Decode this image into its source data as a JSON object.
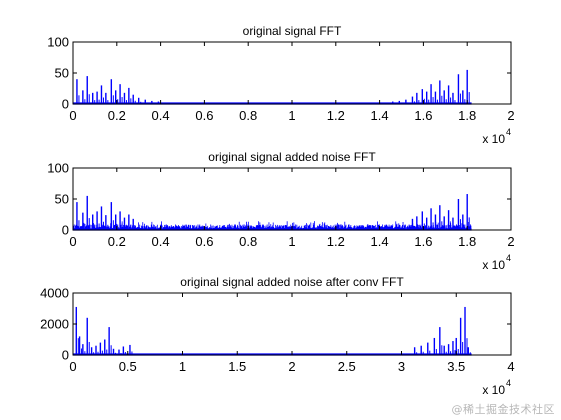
{
  "colors": {
    "signal": "#0000ff",
    "axes": "#000000",
    "background": "#ffffff"
  },
  "watermark": "@稀土掘金技术社区",
  "chart_data": [
    {
      "type": "line",
      "title": "original signal FFT",
      "xlabel": "",
      "ylabel": "",
      "xlim": [
        0,
        20000
      ],
      "ylim": [
        0,
        100
      ],
      "xticks": [
        0,
        2000,
        4000,
        6000,
        8000,
        10000,
        12000,
        14000,
        16000,
        18000,
        20000
      ],
      "xtick_labels": [
        "0",
        "0.2",
        "0.4",
        "0.6",
        "0.8",
        "1",
        "1.2",
        "1.4",
        "1.6",
        "1.8",
        "2"
      ],
      "yticks": [
        0,
        50,
        100
      ],
      "ytick_labels": [
        "0",
        "50",
        "100"
      ],
      "x_exponent_label": "x 10",
      "x_exponent_power": "4",
      "grid": false,
      "x_end": 18200,
      "noise_floor": 1.5,
      "peaks": [
        {
          "x": 180,
          "y": 40
        },
        {
          "x": 450,
          "y": 22
        },
        {
          "x": 650,
          "y": 45
        },
        {
          "x": 900,
          "y": 18
        },
        {
          "x": 1100,
          "y": 20
        },
        {
          "x": 1300,
          "y": 30
        },
        {
          "x": 1500,
          "y": 18
        },
        {
          "x": 1750,
          "y": 40
        },
        {
          "x": 1950,
          "y": 22
        },
        {
          "x": 2150,
          "y": 32
        },
        {
          "x": 2350,
          "y": 18
        },
        {
          "x": 2550,
          "y": 26
        },
        {
          "x": 2750,
          "y": 15
        },
        {
          "x": 3000,
          "y": 10
        },
        {
          "x": 3300,
          "y": 7
        },
        {
          "x": 3600,
          "y": 5
        },
        {
          "x": 3900,
          "y": 4
        },
        {
          "x": 14600,
          "y": 4
        },
        {
          "x": 14900,
          "y": 5
        },
        {
          "x": 15200,
          "y": 7
        },
        {
          "x": 15500,
          "y": 12
        },
        {
          "x": 15700,
          "y": 18
        },
        {
          "x": 15950,
          "y": 24
        },
        {
          "x": 16150,
          "y": 20
        },
        {
          "x": 16350,
          "y": 32
        },
        {
          "x": 16550,
          "y": 20
        },
        {
          "x": 16750,
          "y": 38
        },
        {
          "x": 16950,
          "y": 22
        },
        {
          "x": 17150,
          "y": 30
        },
        {
          "x": 17350,
          "y": 18
        },
        {
          "x": 17600,
          "y": 48
        },
        {
          "x": 17800,
          "y": 22
        },
        {
          "x": 18000,
          "y": 55
        }
      ]
    },
    {
      "type": "line",
      "title": "original signal added noise FFT",
      "xlabel": "",
      "ylabel": "",
      "xlim": [
        0,
        20000
      ],
      "ylim": [
        0,
        100
      ],
      "xticks": [
        0,
        2000,
        4000,
        6000,
        8000,
        10000,
        12000,
        14000,
        16000,
        18000,
        20000
      ],
      "xtick_labels": [
        "0",
        "0.2",
        "0.4",
        "0.6",
        "0.8",
        "1",
        "1.2",
        "1.4",
        "1.6",
        "1.8",
        "2"
      ],
      "yticks": [
        0,
        50,
        100
      ],
      "ytick_labels": [
        "0",
        "50",
        "100"
      ],
      "x_exponent_label": "x 10",
      "x_exponent_power": "4",
      "grid": false,
      "x_end": 18200,
      "noise_floor": 9,
      "peaks": [
        {
          "x": 180,
          "y": 45
        },
        {
          "x": 450,
          "y": 28
        },
        {
          "x": 650,
          "y": 55
        },
        {
          "x": 900,
          "y": 25
        },
        {
          "x": 1100,
          "y": 30
        },
        {
          "x": 1300,
          "y": 38
        },
        {
          "x": 1500,
          "y": 24
        },
        {
          "x": 1750,
          "y": 45
        },
        {
          "x": 1950,
          "y": 25
        },
        {
          "x": 2150,
          "y": 30
        },
        {
          "x": 2350,
          "y": 20
        },
        {
          "x": 2550,
          "y": 25
        },
        {
          "x": 2750,
          "y": 18
        },
        {
          "x": 15500,
          "y": 18
        },
        {
          "x": 15700,
          "y": 22
        },
        {
          "x": 15950,
          "y": 30
        },
        {
          "x": 16150,
          "y": 20
        },
        {
          "x": 16350,
          "y": 35
        },
        {
          "x": 16550,
          "y": 25
        },
        {
          "x": 16750,
          "y": 40
        },
        {
          "x": 16950,
          "y": 22
        },
        {
          "x": 17150,
          "y": 32
        },
        {
          "x": 17350,
          "y": 20
        },
        {
          "x": 17600,
          "y": 50
        },
        {
          "x": 17800,
          "y": 25
        },
        {
          "x": 18000,
          "y": 58
        }
      ]
    },
    {
      "type": "line",
      "title": "original signal added noise after conv FFT",
      "xlabel": "",
      "ylabel": "",
      "xlim": [
        0,
        40000
      ],
      "ylim": [
        0,
        4000
      ],
      "xticks": [
        0,
        5000,
        10000,
        15000,
        20000,
        25000,
        30000,
        35000,
        40000
      ],
      "xtick_labels": [
        "0",
        "0.5",
        "1",
        "1.5",
        "2",
        "2.5",
        "3",
        "3.5",
        "4"
      ],
      "yticks": [
        0,
        2000,
        4000
      ],
      "ytick_labels": [
        "0",
        "2000",
        "4000"
      ],
      "x_exponent_label": "x 10",
      "x_exponent_power": "4",
      "grid": false,
      "x_end": 36400,
      "noise_floor": 40,
      "peaks": [
        {
          "x": 300,
          "y": 3100
        },
        {
          "x": 600,
          "y": 1200
        },
        {
          "x": 900,
          "y": 700
        },
        {
          "x": 1300,
          "y": 2400
        },
        {
          "x": 1700,
          "y": 500
        },
        {
          "x": 2100,
          "y": 600
        },
        {
          "x": 2500,
          "y": 800
        },
        {
          "x": 2900,
          "y": 1000
        },
        {
          "x": 3300,
          "y": 1800
        },
        {
          "x": 3700,
          "y": 400
        },
        {
          "x": 4200,
          "y": 350
        },
        {
          "x": 4600,
          "y": 550
        },
        {
          "x": 5200,
          "y": 650
        },
        {
          "x": 31200,
          "y": 500
        },
        {
          "x": 31800,
          "y": 600
        },
        {
          "x": 32400,
          "y": 800
        },
        {
          "x": 33000,
          "y": 1100
        },
        {
          "x": 33500,
          "y": 1800
        },
        {
          "x": 33900,
          "y": 600
        },
        {
          "x": 34300,
          "y": 700
        },
        {
          "x": 34700,
          "y": 900
        },
        {
          "x": 35000,
          "y": 1100
        },
        {
          "x": 35400,
          "y": 2400
        },
        {
          "x": 35800,
          "y": 3100
        },
        {
          "x": 36100,
          "y": 500
        }
      ]
    }
  ]
}
